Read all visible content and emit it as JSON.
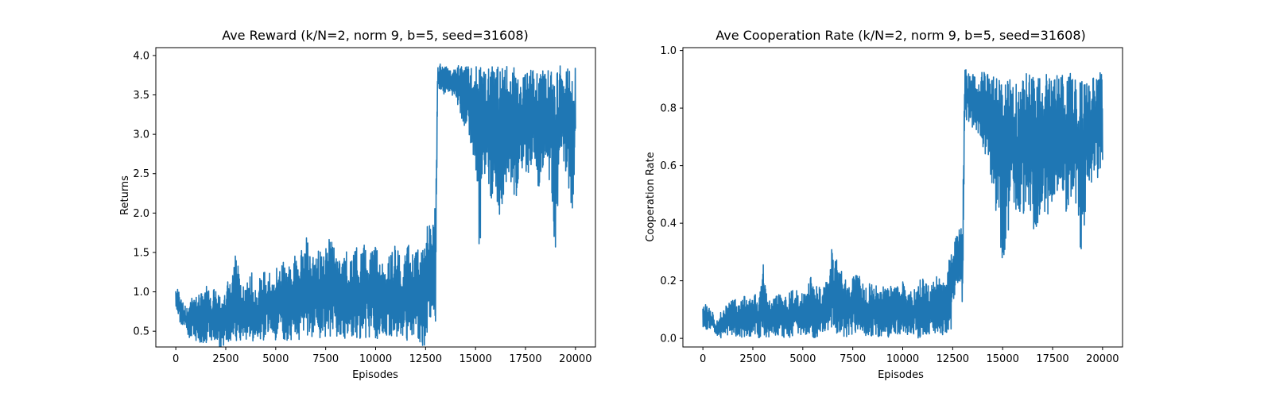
{
  "colors": {
    "line": "#1f77b4",
    "axes": "#000000",
    "background": "#ffffff"
  },
  "chart_data": [
    {
      "type": "line",
      "title": "Ave Reward (k/N=2, norm 9, b=5, seed=31608)",
      "xlabel": "Episodes",
      "ylabel": "Returns",
      "xlim": [
        -1000,
        21000
      ],
      "ylim": [
        0.3,
        4.1
      ],
      "xticks": [
        0,
        2500,
        5000,
        7500,
        10000,
        12500,
        15000,
        17500,
        20000
      ],
      "yticks": [
        0.5,
        1.0,
        1.5,
        2.0,
        2.5,
        3.0,
        3.5,
        4.0
      ],
      "xtick_labels": [
        "0",
        "2500",
        "5000",
        "7500",
        "10000",
        "12500",
        "15000",
        "17500",
        "20000"
      ],
      "ytick_labels": [
        "0.5",
        "1.0",
        "1.5",
        "2.0",
        "2.5",
        "3.0",
        "3.5",
        "4.0"
      ],
      "grid": false,
      "series": [
        {
          "x": [
            0,
            100,
            200,
            300,
            400,
            500,
            600,
            700,
            800,
            900,
            1000,
            1200,
            1400,
            1600,
            1800,
            2000,
            2200,
            2400,
            2600,
            2800,
            3000,
            3200,
            3400,
            3600,
            3800,
            4000,
            4200,
            4400,
            4600,
            4800,
            5000,
            5200,
            5400,
            5600,
            5800,
            6000,
            6200,
            6400,
            6600,
            6800,
            7000,
            7200,
            7400,
            7600,
            7800,
            8000,
            8200,
            8400,
            8600,
            8800,
            9000,
            9200,
            9400,
            9600,
            9800,
            10000,
            10200,
            10400,
            10600,
            10800,
            11000,
            11200,
            11400,
            11600,
            11800,
            12000,
            12200,
            12400,
            12600,
            12700,
            12800,
            12900,
            13000,
            13100,
            13200,
            13400,
            13600,
            13800,
            14000,
            14200,
            14400,
            14600,
            14800,
            15000,
            15200,
            15400,
            15600,
            15800,
            16000,
            16200,
            16400,
            16600,
            16800,
            17000,
            17200,
            17400,
            17600,
            17800,
            18000,
            18200,
            18400,
            18600,
            18800,
            19000,
            19200,
            19400,
            19600,
            19800,
            20000
          ],
          "max": [
            1.07,
            1.03,
            0.98,
            0.92,
            0.88,
            0.8,
            0.78,
            0.92,
            0.95,
            0.88,
            1.0,
            0.98,
            1.05,
            1.1,
            1.0,
            1.12,
            0.95,
            1.05,
            1.15,
            1.12,
            1.57,
            1.2,
            1.05,
            1.15,
            1.25,
            1.0,
            1.2,
            1.3,
            1.38,
            1.2,
            1.3,
            1.32,
            1.45,
            1.3,
            1.5,
            1.45,
            1.42,
            1.7,
            1.7,
            1.6,
            1.55,
            1.55,
            1.5,
            1.65,
            1.7,
            1.55,
            1.4,
            1.55,
            1.6,
            1.4,
            1.62,
            1.4,
            1.65,
            1.45,
            1.5,
            1.65,
            1.5,
            1.4,
            1.4,
            1.6,
            1.58,
            1.5,
            1.45,
            1.65,
            1.55,
            1.5,
            1.6,
            1.7,
            2.07,
            1.95,
            1.98,
            2.0,
            2.1,
            3.88,
            3.9,
            3.91,
            3.85,
            3.8,
            3.85,
            3.88,
            3.85,
            3.88,
            3.86,
            3.87,
            3.85,
            3.88,
            3.86,
            3.87,
            3.86,
            3.88,
            3.85,
            3.87,
            3.88,
            3.86,
            3.85,
            3.87,
            3.88,
            3.86,
            3.87,
            3.85,
            3.91,
            3.88,
            3.86,
            3.85,
            3.87,
            3.86,
            3.87,
            3.88,
            3.86
          ],
          "min": [
            0.8,
            0.7,
            0.62,
            0.58,
            0.55,
            0.5,
            0.45,
            0.4,
            0.4,
            0.38,
            0.38,
            0.36,
            0.35,
            0.36,
            0.33,
            0.38,
            0.3,
            0.28,
            0.36,
            0.38,
            0.37,
            0.38,
            0.37,
            0.38,
            0.36,
            0.38,
            0.37,
            0.36,
            0.37,
            0.4,
            0.38,
            0.37,
            0.36,
            0.38,
            0.39,
            0.38,
            0.37,
            0.45,
            0.42,
            0.4,
            0.38,
            0.42,
            0.4,
            0.41,
            0.39,
            0.4,
            0.41,
            0.4,
            0.38,
            0.41,
            0.4,
            0.39,
            0.41,
            0.4,
            0.39,
            0.41,
            0.4,
            0.39,
            0.41,
            0.4,
            0.39,
            0.4,
            0.41,
            0.38,
            0.4,
            0.39,
            0.35,
            0.28,
            0.45,
            0.5,
            0.55,
            0.6,
            0.62,
            3.5,
            3.55,
            3.5,
            3.55,
            3.5,
            3.45,
            3.3,
            3.1,
            3.0,
            2.8,
            2.6,
            1.35,
            2.55,
            2.4,
            2.1,
            2.3,
            1.85,
            2.2,
            2.35,
            2.4,
            2.1,
            2.6,
            2.5,
            2.45,
            2.55,
            2.7,
            2.15,
            2.65,
            2.5,
            2.2,
            1.38,
            2.6,
            2.5,
            2.55,
            1.85,
            2.65,
            2.7
          ]
        }
      ]
    },
    {
      "type": "line",
      "title": "Ave Cooperation Rate (k/N=2, norm 9, b=5, seed=31608)",
      "xlabel": "Episodes",
      "ylabel": "Cooperation Rate",
      "xlim": [
        -1000,
        21000
      ],
      "ylim": [
        -0.03,
        1.01
      ],
      "xticks": [
        0,
        2500,
        5000,
        7500,
        10000,
        12500,
        15000,
        17500,
        20000
      ],
      "yticks": [
        0.0,
        0.2,
        0.4,
        0.6,
        0.8,
        1.0
      ],
      "xtick_labels": [
        "0",
        "2500",
        "5000",
        "7500",
        "10000",
        "12500",
        "15000",
        "17500",
        "20000"
      ],
      "ytick_labels": [
        "0.0",
        "0.2",
        "0.4",
        "0.6",
        "0.8",
        "1.0"
      ],
      "grid": false,
      "series": [
        {
          "x": [
            0,
            100,
            200,
            300,
            400,
            500,
            600,
            700,
            800,
            900,
            1000,
            1200,
            1400,
            1600,
            1800,
            2000,
            2200,
            2400,
            2600,
            2800,
            3000,
            3200,
            3400,
            3600,
            3800,
            4000,
            4200,
            4400,
            4600,
            4800,
            5000,
            5200,
            5400,
            5600,
            5800,
            6000,
            6200,
            6400,
            6600,
            6800,
            7000,
            7200,
            7400,
            7600,
            7800,
            8000,
            8200,
            8400,
            8600,
            8800,
            9000,
            9200,
            9400,
            9600,
            9800,
            10000,
            10200,
            10400,
            10600,
            10800,
            11000,
            11200,
            11400,
            11600,
            11800,
            12000,
            12200,
            12400,
            12600,
            12700,
            12800,
            12900,
            13000,
            13100,
            13200,
            13400,
            13600,
            13800,
            14000,
            14200,
            14400,
            14600,
            14800,
            15000,
            15200,
            15400,
            15600,
            15800,
            16000,
            16200,
            16400,
            16600,
            16800,
            17000,
            17200,
            17400,
            17600,
            17800,
            18000,
            18200,
            18400,
            18600,
            18800,
            19000,
            19200,
            19400,
            19600,
            19800,
            20000
          ],
          "max": [
            0.12,
            0.12,
            0.11,
            0.11,
            0.1,
            0.1,
            0.05,
            0.06,
            0.07,
            0.1,
            0.09,
            0.12,
            0.13,
            0.14,
            0.12,
            0.16,
            0.13,
            0.14,
            0.16,
            0.13,
            0.27,
            0.17,
            0.13,
            0.14,
            0.16,
            0.13,
            0.15,
            0.17,
            0.18,
            0.15,
            0.16,
            0.17,
            0.22,
            0.17,
            0.2,
            0.18,
            0.2,
            0.31,
            0.31,
            0.28,
            0.22,
            0.21,
            0.2,
            0.22,
            0.23,
            0.19,
            0.18,
            0.2,
            0.19,
            0.17,
            0.19,
            0.18,
            0.19,
            0.18,
            0.18,
            0.2,
            0.18,
            0.17,
            0.18,
            0.2,
            0.21,
            0.19,
            0.18,
            0.22,
            0.21,
            0.19,
            0.23,
            0.3,
            0.37,
            0.37,
            0.38,
            0.39,
            0.4,
            0.94,
            0.94,
            0.93,
            0.92,
            0.91,
            0.93,
            0.92,
            0.93,
            0.92,
            0.93,
            0.92,
            0.93,
            0.92,
            0.91,
            0.93,
            0.92,
            0.93,
            0.92,
            0.91,
            0.93,
            0.92,
            0.93,
            0.92,
            0.91,
            0.93,
            0.92,
            0.93,
            0.96,
            0.93,
            0.92,
            0.91,
            0.93,
            0.92,
            0.93,
            0.94,
            0.92
          ],
          "min": [
            0.04,
            0.03,
            0.03,
            0.04,
            0.03,
            0.01,
            0.02,
            0.01,
            0.01,
            0.0,
            0.01,
            0.0,
            0.01,
            0.0,
            0.01,
            0.0,
            0.01,
            0.0,
            0.01,
            0.0,
            0.01,
            0.0,
            0.01,
            0.0,
            0.01,
            0.0,
            0.01,
            0.0,
            0.01,
            0.0,
            0.01,
            0.0,
            0.01,
            0.0,
            0.01,
            0.0,
            0.01,
            0.04,
            0.01,
            0.0,
            0.01,
            0.0,
            0.01,
            0.0,
            0.01,
            0.0,
            0.01,
            0.0,
            0.01,
            0.0,
            0.01,
            0.0,
            0.01,
            0.0,
            0.01,
            0.0,
            0.01,
            0.0,
            0.01,
            0.0,
            0.01,
            0.0,
            0.01,
            0.0,
            0.01,
            0.0,
            0.01,
            0.01,
            0.15,
            0.17,
            0.18,
            0.19,
            0.03,
            0.75,
            0.75,
            0.74,
            0.72,
            0.7,
            0.65,
            0.62,
            0.55,
            0.45,
            0.42,
            0.22,
            0.32,
            0.45,
            0.4,
            0.38,
            0.42,
            0.48,
            0.35,
            0.38,
            0.4,
            0.45,
            0.42,
            0.45,
            0.5,
            0.48,
            0.52,
            0.43,
            0.48,
            0.45,
            0.38,
            0.19,
            0.55,
            0.52,
            0.58,
            0.55,
            0.6,
            0.6
          ]
        }
      ]
    }
  ]
}
